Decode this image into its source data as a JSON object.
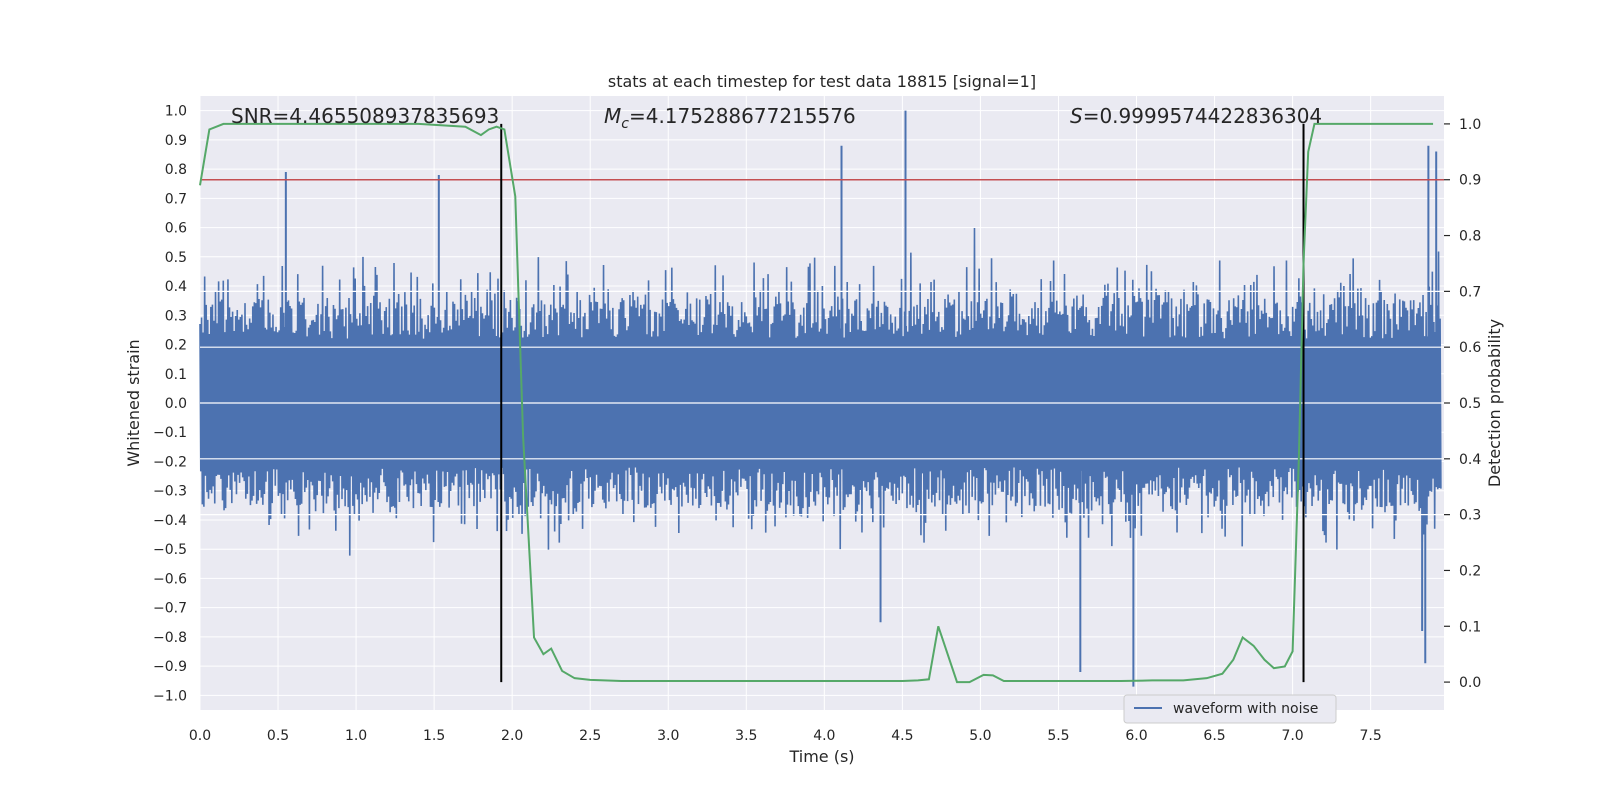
{
  "chart_data": {
    "type": "line",
    "title": "stats at each timestep for test data 18815 [signal=1]",
    "xlabel": "Time (s)",
    "ylabel_left": "Whitened strain",
    "ylabel_right": "Detection probability",
    "xlim": [
      0,
      7.97
    ],
    "ylim_left": [
      -1.05,
      1.05
    ],
    "ylim_right": [
      -0.05,
      1.05
    ],
    "x_ticks": [
      "0.0",
      "0.5",
      "1.0",
      "1.5",
      "2.0",
      "2.5",
      "3.0",
      "3.5",
      "4.0",
      "4.5",
      "5.0",
      "5.5",
      "6.0",
      "6.5",
      "7.0",
      "7.5"
    ],
    "y_left_ticks": [
      "1.0",
      "0.9",
      "0.8",
      "0.7",
      "0.6",
      "0.5",
      "0.4",
      "0.3",
      "0.2",
      "0.1",
      "0.0",
      "−0.1",
      "−0.2",
      "−0.3",
      "−0.4",
      "−0.5",
      "−0.6",
      "−0.7",
      "−0.8",
      "−0.9",
      "−1.0"
    ],
    "y_right_ticks": [
      "1.0",
      "0.9",
      "0.8",
      "0.7",
      "0.6",
      "0.5",
      "0.4",
      "0.3",
      "0.2",
      "0.1",
      "0.0"
    ],
    "annotations": {
      "snr": "SNR=4.465508937835693",
      "mc_symbol": "M",
      "mc_sub": "c",
      "mc_value": "=4.175288677215576",
      "s_symbol": "S",
      "s_value": "=0.9999574422836304"
    },
    "threshold": {
      "value": 0.9,
      "axis": "right",
      "color": "#c44e52"
    },
    "vlines": [
      1.93,
      7.07
    ],
    "waveform": {
      "name": "waveform with noise",
      "color": "#4c72b0",
      "approx_range": [
        -1.0,
        1.0
      ],
      "peaks": [
        {
          "x": 4.52,
          "y": 1.0
        },
        {
          "x": 4.11,
          "y": 0.88
        },
        {
          "x": 7.87,
          "y": 0.88
        },
        {
          "x": 0.55,
          "y": 0.79
        },
        {
          "x": 1.53,
          "y": 0.78
        },
        {
          "x": 7.92,
          "y": 0.86
        },
        {
          "x": 5.98,
          "y": -0.97
        },
        {
          "x": 5.64,
          "y": -0.92
        },
        {
          "x": 7.85,
          "y": -0.89
        },
        {
          "x": 4.36,
          "y": -0.75
        },
        {
          "x": 7.83,
          "y": -0.78
        }
      ]
    },
    "probability": {
      "name": "detection probability",
      "color": "#55a868",
      "x": [
        0.0,
        0.06,
        0.15,
        0.3,
        0.6,
        1.0,
        1.4,
        1.7,
        1.8,
        1.85,
        1.9,
        1.95,
        2.02,
        2.07,
        2.14,
        2.2,
        2.25,
        2.32,
        2.4,
        2.5,
        2.7,
        3.0,
        3.5,
        4.0,
        4.5,
        4.6,
        4.67,
        4.73,
        4.85,
        4.93,
        5.02,
        5.08,
        5.15,
        5.3,
        5.6,
        5.9,
        6.1,
        6.3,
        6.45,
        6.55,
        6.62,
        6.68,
        6.75,
        6.82,
        6.88,
        6.95,
        7.0,
        7.04,
        7.07,
        7.1,
        7.14,
        7.3,
        7.6,
        7.9
      ],
      "y": [
        0.89,
        0.99,
        1.0,
        1.0,
        1.0,
        1.0,
        1.0,
        0.995,
        0.98,
        0.99,
        0.995,
        0.99,
        0.87,
        0.44,
        0.08,
        0.05,
        0.06,
        0.02,
        0.007,
        0.004,
        0.002,
        0.002,
        0.002,
        0.002,
        0.002,
        0.003,
        0.005,
        0.1,
        0.0,
        0.0,
        0.013,
        0.012,
        0.002,
        0.002,
        0.002,
        0.002,
        0.003,
        0.003,
        0.007,
        0.015,
        0.04,
        0.08,
        0.065,
        0.04,
        0.025,
        0.028,
        0.055,
        0.4,
        0.75,
        0.95,
        1.0,
        1.0,
        1.0,
        1.0
      ]
    },
    "legend": {
      "entries": [
        "waveform with noise"
      ],
      "location": "lower-right"
    },
    "grid": true,
    "colors": {
      "background": "#eaeaf2",
      "grid": "#ffffff",
      "vline": "#000000"
    }
  }
}
